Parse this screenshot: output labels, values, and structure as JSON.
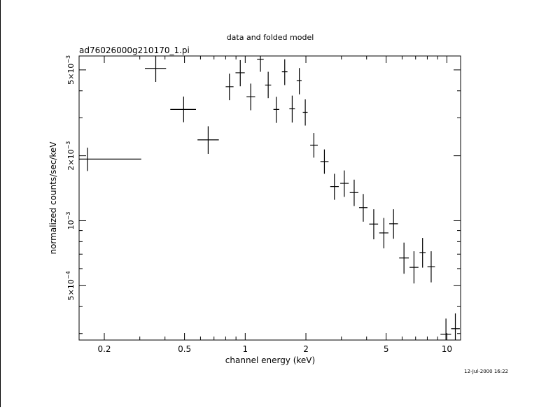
{
  "page": {
    "colors": {
      "background": "#ffffff",
      "ink": "#000000"
    }
  },
  "chart_data": {
    "type": "scatter",
    "title": "data and folded model",
    "subtitle": "ad76026000g210170_1.pi",
    "xlabel": "channel energy (keV)",
    "ylabel": "normalized counts/sec/keV",
    "timestamp": "12-Jul-2000 16:22",
    "x_scale": "log",
    "y_scale": "log",
    "xlim": [
      0.15,
      11.7
    ],
    "ylim": [
      0.00028,
      0.0058
    ],
    "x_ticks": [
      {
        "value": 0.2,
        "label": "0.2"
      },
      {
        "value": 0.5,
        "label": "0.5"
      },
      {
        "value": 1,
        "label": "1"
      },
      {
        "value": 2,
        "label": "2"
      },
      {
        "value": 5,
        "label": "5"
      },
      {
        "value": 10,
        "label": "10"
      }
    ],
    "y_ticks": [
      {
        "value": 0.005,
        "label_base": "5×10",
        "label_exp": "−3"
      },
      {
        "value": 0.002,
        "label_base": "2×10",
        "label_exp": "−3"
      },
      {
        "value": 0.001,
        "label_base": "10",
        "label_exp": "−3"
      },
      {
        "value": 0.0005,
        "label_base": "5×10",
        "label_exp": "−4"
      }
    ],
    "grid": false,
    "series": [
      {
        "style": "crosses",
        "points": [
          {
            "x": 0.165,
            "x_lo": 0.15,
            "x_hi": 0.305,
            "y": 0.00193,
            "y_lo": 0.0017,
            "y_hi": 0.00218
          },
          {
            "x": 0.36,
            "x_lo": 0.318,
            "x_hi": 0.405,
            "y": 0.00508,
            "y_lo": 0.0044,
            "y_hi": 0.00585
          },
          {
            "x": 0.495,
            "x_lo": 0.425,
            "x_hi": 0.57,
            "y": 0.00328,
            "y_lo": 0.00286,
            "y_hi": 0.00376
          },
          {
            "x": 0.655,
            "x_lo": 0.58,
            "x_hi": 0.74,
            "y": 0.00237,
            "y_lo": 0.00204,
            "y_hi": 0.00274
          },
          {
            "x": 0.835,
            "x_lo": 0.8,
            "x_hi": 0.875,
            "y": 0.00418,
            "y_lo": 0.00362,
            "y_hi": 0.0048
          },
          {
            "x": 0.945,
            "x_lo": 0.895,
            "x_hi": 0.995,
            "y": 0.00485,
            "y_lo": 0.0042,
            "y_hi": 0.00555
          },
          {
            "x": 1.065,
            "x_lo": 1.015,
            "x_hi": 1.12,
            "y": 0.00375,
            "y_lo": 0.00325,
            "y_hi": 0.00432
          },
          {
            "x": 1.19,
            "x_lo": 1.145,
            "x_hi": 1.235,
            "y": 0.0056,
            "y_lo": 0.0049,
            "y_hi": 0.0061
          },
          {
            "x": 1.3,
            "x_lo": 1.255,
            "x_hi": 1.345,
            "y": 0.00425,
            "y_lo": 0.0037,
            "y_hi": 0.0049
          },
          {
            "x": 1.425,
            "x_lo": 1.38,
            "x_hi": 1.475,
            "y": 0.00328,
            "y_lo": 0.00284,
            "y_hi": 0.00375
          },
          {
            "x": 1.57,
            "x_lo": 1.52,
            "x_hi": 1.62,
            "y": 0.0049,
            "y_lo": 0.00425,
            "y_hi": 0.0056
          },
          {
            "x": 1.71,
            "x_lo": 1.655,
            "x_hi": 1.765,
            "y": 0.0033,
            "y_lo": 0.00285,
            "y_hi": 0.0038
          },
          {
            "x": 1.855,
            "x_lo": 1.8,
            "x_hi": 1.905,
            "y": 0.00445,
            "y_lo": 0.00385,
            "y_hi": 0.0051
          },
          {
            "x": 1.985,
            "x_lo": 1.93,
            "x_hi": 2.04,
            "y": 0.00318,
            "y_lo": 0.00276,
            "y_hi": 0.00365
          },
          {
            "x": 2.19,
            "x_lo": 2.1,
            "x_hi": 2.29,
            "y": 0.00224,
            "y_lo": 0.00196,
            "y_hi": 0.00255
          },
          {
            "x": 2.47,
            "x_lo": 2.36,
            "x_hi": 2.59,
            "y": 0.00188,
            "y_lo": 0.00165,
            "y_hi": 0.00214
          },
          {
            "x": 2.77,
            "x_lo": 2.64,
            "x_hi": 2.91,
            "y": 0.00144,
            "y_lo": 0.00125,
            "y_hi": 0.00165
          },
          {
            "x": 3.1,
            "x_lo": 2.96,
            "x_hi": 3.26,
            "y": 0.00149,
            "y_lo": 0.00129,
            "y_hi": 0.00171
          },
          {
            "x": 3.47,
            "x_lo": 3.3,
            "x_hi": 3.64,
            "y": 0.00135,
            "y_lo": 0.00117,
            "y_hi": 0.00155
          },
          {
            "x": 3.85,
            "x_lo": 3.67,
            "x_hi": 4.04,
            "y": 0.00115,
            "y_lo": 0.00099,
            "y_hi": 0.00133
          },
          {
            "x": 4.34,
            "x_lo": 4.12,
            "x_hi": 4.56,
            "y": 0.000965,
            "y_lo": 0.00082,
            "y_hi": 0.00113
          },
          {
            "x": 4.87,
            "x_lo": 4.62,
            "x_hi": 5.13,
            "y": 0.000878,
            "y_lo": 0.000745,
            "y_hi": 0.00103
          },
          {
            "x": 5.44,
            "x_lo": 5.18,
            "x_hi": 5.72,
            "y": 0.000968,
            "y_lo": 0.000825,
            "y_hi": 0.00113
          },
          {
            "x": 6.13,
            "x_lo": 5.8,
            "x_hi": 6.48,
            "y": 0.000672,
            "y_lo": 0.000568,
            "y_hi": 0.000792
          },
          {
            "x": 6.87,
            "x_lo": 6.53,
            "x_hi": 7.23,
            "y": 0.000608,
            "y_lo": 0.000512,
            "y_hi": 0.000722
          },
          {
            "x": 7.58,
            "x_lo": 7.32,
            "x_hi": 7.85,
            "y": 0.000712,
            "y_lo": 0.000606,
            "y_hi": 0.000832
          },
          {
            "x": 8.36,
            "x_lo": 8.01,
            "x_hi": 8.73,
            "y": 0.000612,
            "y_lo": 0.000518,
            "y_hi": 0.000722
          },
          {
            "x": 9.9,
            "x_lo": 9.3,
            "x_hi": 10.5,
            "y": 0.000298,
            "y_lo": 0.00025,
            "y_hi": 0.000352
          },
          {
            "x": 11.02,
            "x_lo": 10.5,
            "x_hi": 11.6,
            "y": 0.000316,
            "y_lo": 0.000268,
            "y_hi": 0.000372
          }
        ]
      }
    ]
  }
}
